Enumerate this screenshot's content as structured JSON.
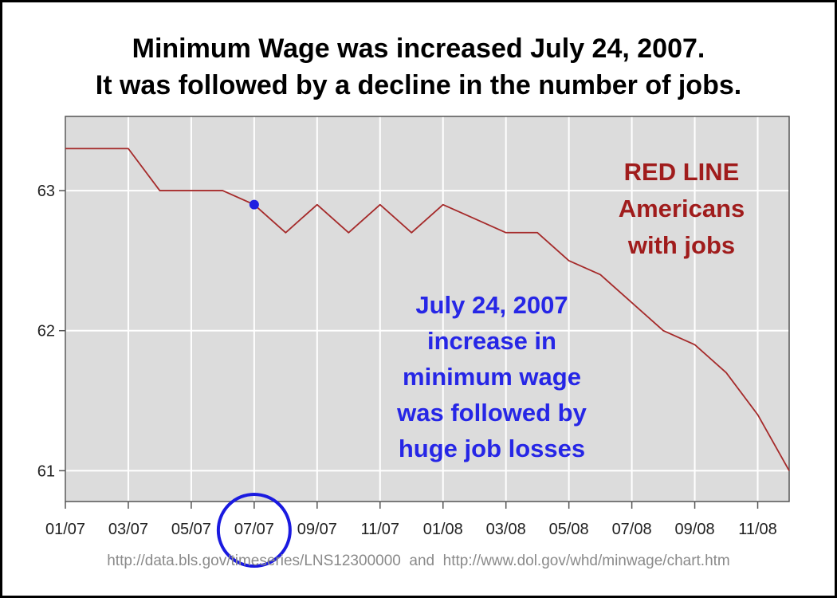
{
  "title_line1": "Minimum Wage was increased July 24, 2007.",
  "title_line2": "It was followed by a decline in the number of jobs.",
  "annotations": {
    "red": [
      "RED LINE",
      "Americans",
      "with jobs"
    ],
    "blue": [
      "July 24, 2007",
      "increase in",
      "minimum wage",
      "was followed by",
      "huge job losses"
    ]
  },
  "source": "http://data.bls.gov/timeseries/LNS12300000  and  http://www.dol.gov/whd/minwage/chart.htm",
  "colors": {
    "series_line": "#a52a2a",
    "marker": "#2020e0",
    "highlight_circle": "#1a1ae0",
    "plot_background": "#dcdcdc",
    "gridline": "#ffffff",
    "red_annotation": "#a01c1c",
    "blue_annotation": "#2626e6"
  },
  "chart_data": {
    "type": "line",
    "x": [
      "01/07",
      "02/07",
      "03/07",
      "04/07",
      "05/07",
      "06/07",
      "07/07",
      "08/07",
      "09/07",
      "10/07",
      "11/07",
      "12/07",
      "01/08",
      "02/08",
      "03/08",
      "04/08",
      "05/08",
      "06/08",
      "07/08",
      "08/08",
      "09/08",
      "10/08",
      "11/08",
      "12/08"
    ],
    "series": [
      {
        "values": [
          63.3,
          63.3,
          63.3,
          63.0,
          63.0,
          63.0,
          62.9,
          62.7,
          62.9,
          62.7,
          62.9,
          62.7,
          62.9,
          62.8,
          62.7,
          62.7,
          62.5,
          62.4,
          62.2,
          62.0,
          61.9,
          61.7,
          61.4,
          61.0
        ]
      }
    ],
    "xticks": [
      "01/07",
      "03/07",
      "05/07",
      "07/07",
      "09/07",
      "11/07",
      "01/08",
      "03/08",
      "05/08",
      "07/08",
      "09/08",
      "11/08"
    ],
    "yticks": [
      61,
      62,
      63
    ],
    "ylim": [
      60.78,
      63.53
    ],
    "grid": true,
    "highlight_point": {
      "x": "07/07",
      "y": 62.9
    },
    "highlight_tick": "07/07"
  }
}
